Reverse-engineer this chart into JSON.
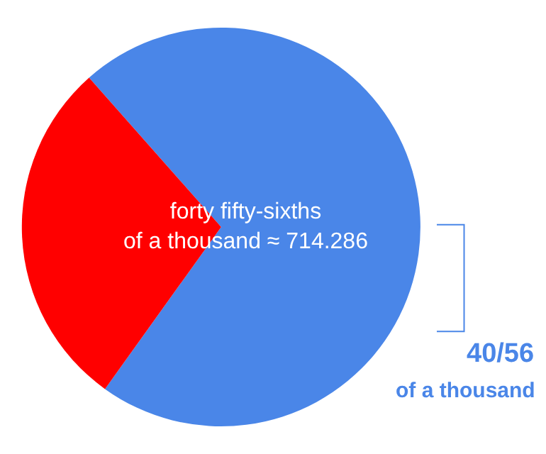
{
  "chart_data": {
    "type": "pie",
    "categories": [
      null,
      null
    ],
    "values": [
      71.43,
      28.57
    ],
    "colors": [
      "#4a86e8",
      "#ff0000"
    ],
    "annotations": [
      "forty fifty-sixths\nof a thousand ≈ 714.286",
      "40/56",
      "of a thousand"
    ],
    "legend": false
  }
}
